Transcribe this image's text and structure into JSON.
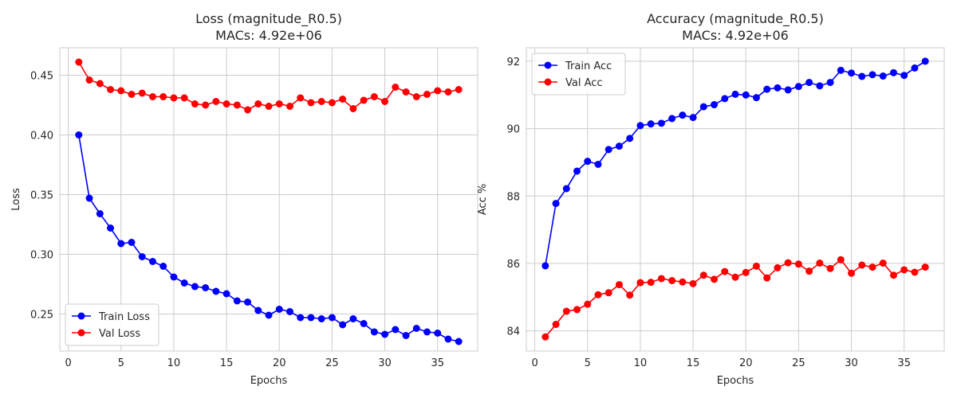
{
  "chart_data": [
    {
      "type": "line",
      "title": "Loss (magnitude_R0.5)",
      "subtitle": "MACs: 4.92e+06",
      "xlabel": "Epochs",
      "ylabel": "Loss",
      "xlim": [
        -0.8,
        38.8
      ],
      "ylim": [
        0.219,
        0.473
      ],
      "xticks": [
        0,
        5,
        10,
        15,
        20,
        25,
        30,
        35
      ],
      "yticks": [
        0.25,
        0.3,
        0.35,
        0.4,
        0.45
      ],
      "ytick_labels": [
        "0.25",
        "0.30",
        "0.35",
        "0.40",
        "0.45"
      ],
      "grid": true,
      "legend_position": "lower-left",
      "x": [
        1,
        2,
        3,
        4,
        5,
        6,
        7,
        8,
        9,
        10,
        11,
        12,
        13,
        14,
        15,
        16,
        17,
        18,
        19,
        20,
        21,
        22,
        23,
        24,
        25,
        26,
        27,
        28,
        29,
        30,
        31,
        32,
        33,
        34,
        35,
        36,
        37
      ],
      "series": [
        {
          "name": "Train Loss",
          "color": "#0000ff",
          "values": [
            0.4,
            0.347,
            0.334,
            0.322,
            0.309,
            0.31,
            0.298,
            0.294,
            0.29,
            0.281,
            0.276,
            0.273,
            0.272,
            0.269,
            0.267,
            0.261,
            0.26,
            0.253,
            0.249,
            0.254,
            0.252,
            0.247,
            0.247,
            0.246,
            0.247,
            0.241,
            0.246,
            0.242,
            0.235,
            0.233,
            0.237,
            0.232,
            0.238,
            0.235,
            0.234,
            0.229,
            0.227
          ]
        },
        {
          "name": "Val Loss",
          "color": "#ff0000",
          "values": [
            0.461,
            0.446,
            0.443,
            0.438,
            0.437,
            0.434,
            0.435,
            0.432,
            0.432,
            0.431,
            0.431,
            0.426,
            0.425,
            0.428,
            0.426,
            0.425,
            0.421,
            0.426,
            0.424,
            0.426,
            0.424,
            0.431,
            0.427,
            0.428,
            0.427,
            0.43,
            0.422,
            0.429,
            0.432,
            0.428,
            0.44,
            0.436,
            0.432,
            0.434,
            0.437,
            0.436,
            0.438
          ]
        }
      ]
    },
    {
      "type": "line",
      "title": "Accuracy (magnitude_R0.5)",
      "subtitle": "MACs: 4.92e+06",
      "xlabel": "Epochs",
      "ylabel": "Acc %",
      "xlim": [
        -0.8,
        38.8
      ],
      "ylim": [
        83.4,
        92.4
      ],
      "xticks": [
        0,
        5,
        10,
        15,
        20,
        25,
        30,
        35
      ],
      "yticks": [
        84,
        86,
        88,
        90,
        92
      ],
      "ytick_labels": [
        "84",
        "86",
        "88",
        "90",
        "92"
      ],
      "grid": true,
      "legend_position": "upper-left",
      "x": [
        1,
        2,
        3,
        4,
        5,
        6,
        7,
        8,
        9,
        10,
        11,
        12,
        13,
        14,
        15,
        16,
        17,
        18,
        19,
        20,
        21,
        22,
        23,
        24,
        25,
        26,
        27,
        28,
        29,
        30,
        31,
        32,
        33,
        34,
        35,
        36,
        37
      ],
      "series": [
        {
          "name": "Train Acc",
          "color": "#0000ff",
          "values": [
            85.93,
            87.78,
            88.22,
            88.74,
            89.03,
            88.94,
            89.38,
            89.48,
            89.71,
            90.09,
            90.14,
            90.16,
            90.3,
            90.4,
            90.33,
            90.65,
            90.71,
            90.89,
            91.02,
            91.0,
            90.92,
            91.17,
            91.21,
            91.15,
            91.25,
            91.37,
            91.27,
            91.37,
            91.73,
            91.65,
            91.55,
            91.6,
            91.56,
            91.66,
            91.58,
            91.8,
            92.0
          ]
        },
        {
          "name": "Val Acc",
          "color": "#ff0000",
          "values": [
            83.82,
            84.19,
            84.58,
            84.63,
            84.79,
            85.07,
            85.13,
            85.37,
            85.06,
            85.43,
            85.44,
            85.55,
            85.49,
            85.45,
            85.4,
            85.65,
            85.53,
            85.76,
            85.59,
            85.73,
            85.92,
            85.57,
            85.87,
            86.02,
            85.98,
            85.77,
            86.01,
            85.85,
            86.11,
            85.71,
            85.95,
            85.89,
            86.01,
            85.65,
            85.81,
            85.74,
            85.89
          ]
        }
      ]
    }
  ]
}
